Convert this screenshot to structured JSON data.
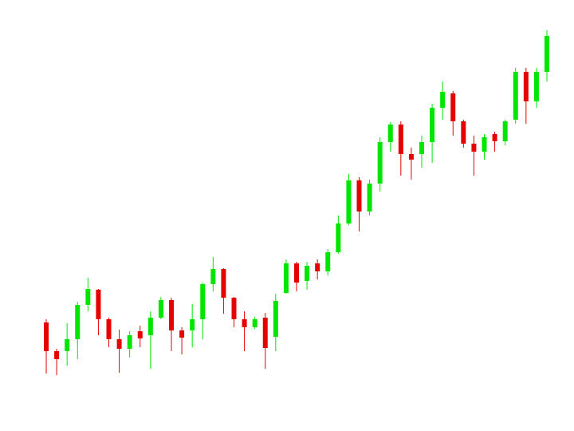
{
  "chart_data": {
    "type": "candlestick",
    "up_color": "#00e600",
    "down_color": "#e60000",
    "ylim": [
      0,
      540
    ],
    "open": [
      136,
      100,
      100,
      115,
      158,
      177,
      140,
      115,
      103,
      125,
      120,
      142,
      164,
      126,
      126,
      140,
      184,
      203,
      167,
      140,
      130,
      142,
      118,
      173,
      210,
      188,
      210,
      200,
      224,
      260,
      314,
      275,
      310,
      362,
      384,
      347,
      347,
      362,
      405,
      423,
      388,
      360,
      350,
      372,
      363,
      390,
      450,
      413,
      450
    ],
    "high": [
      140,
      103,
      135,
      162,
      192,
      178,
      142,
      127,
      125,
      132,
      150,
      168,
      167,
      130,
      159,
      186,
      218,
      204,
      168,
      150,
      143,
      148,
      172,
      215,
      212,
      212,
      215,
      228,
      270,
      322,
      318,
      315,
      368,
      387,
      388,
      355,
      370,
      410,
      438,
      426,
      390,
      370,
      372,
      375,
      390,
      455,
      455,
      455,
      502
    ],
    "low": [
      72,
      70,
      82,
      90,
      150,
      120,
      105,
      73,
      92,
      105,
      78,
      140,
      100,
      96,
      105,
      115,
      175,
      147,
      130,
      100,
      128,
      78,
      100,
      172,
      175,
      177,
      190,
      195,
      222,
      258,
      250,
      270,
      300,
      350,
      320,
      315,
      330,
      336,
      390,
      370,
      355,
      320,
      340,
      350,
      358,
      385,
      385,
      405,
      438
    ],
    "close": [
      100,
      90,
      115,
      158,
      178,
      140,
      115,
      103,
      120,
      116,
      142,
      164,
      126,
      117,
      140,
      184,
      203,
      167,
      140,
      130,
      140,
      104,
      163,
      210,
      186,
      207,
      200,
      224,
      260,
      314,
      275,
      310,
      362,
      384,
      347,
      340,
      362,
      405,
      425,
      388,
      360,
      350,
      368,
      363,
      388,
      450,
      413,
      450,
      495
    ]
  }
}
